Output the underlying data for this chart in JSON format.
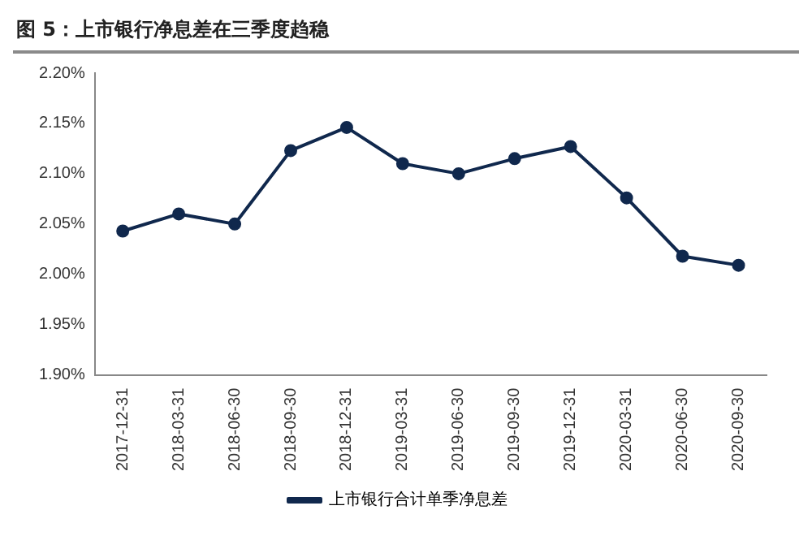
{
  "chart_data": {
    "type": "line",
    "title": "图 5：上市银行净息差在三季度趋稳",
    "categories": [
      "2017-12-31",
      "2018-03-31",
      "2018-06-30",
      "2018-09-30",
      "2018-12-31",
      "2019-03-31",
      "2019-06-30",
      "2019-09-30",
      "2019-12-31",
      "2020-03-31",
      "2020-06-30",
      "2020-09-30"
    ],
    "series": [
      {
        "name": "上市银行合计单季净息差",
        "color": "#10284d",
        "values": [
          2.043,
          2.06,
          2.05,
          2.123,
          2.146,
          2.11,
          2.1,
          2.115,
          2.127,
          2.076,
          2.018,
          2.009
        ]
      }
    ],
    "ylim": [
      1.9,
      2.2
    ],
    "yticks": [
      {
        "value": 1.9,
        "label": "1.90%"
      },
      {
        "value": 1.95,
        "label": "1.95%"
      },
      {
        "value": 2.0,
        "label": "2.00%"
      },
      {
        "value": 2.05,
        "label": "2.05%"
      },
      {
        "value": 2.1,
        "label": "2.10%"
      },
      {
        "value": 2.15,
        "label": "2.15%"
      },
      {
        "value": 2.2,
        "label": "2.20%"
      }
    ],
    "grid": false,
    "legend": "bottom",
    "marker": "circle",
    "line_style": "solid"
  }
}
